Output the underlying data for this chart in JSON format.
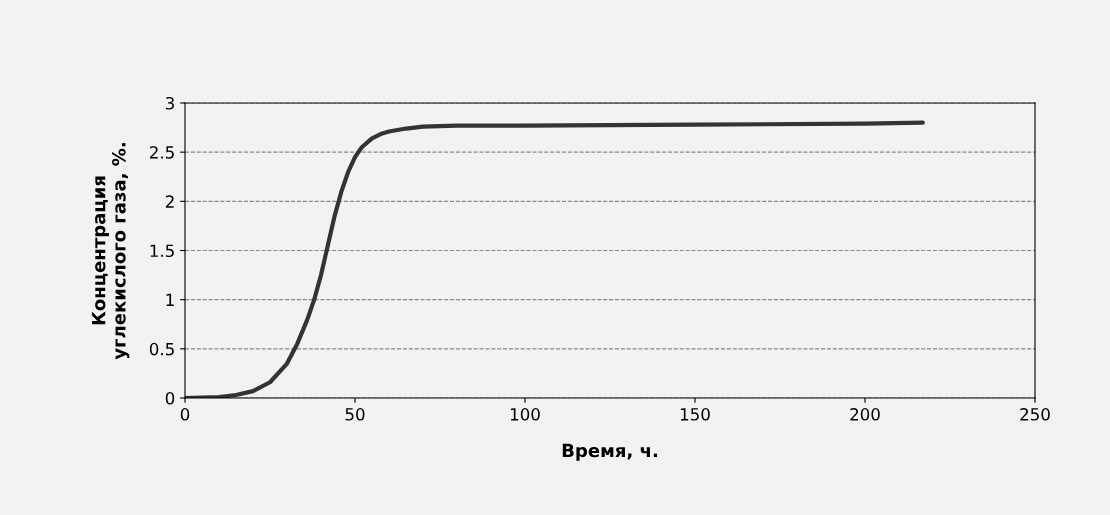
{
  "chart_data": {
    "type": "line",
    "xlabel": "Время, ч.",
    "ylabel": "Концентрация\nуглекислого газа, %.",
    "series": [
      {
        "color": "#333333",
        "x": [
          0,
          5,
          10,
          15,
          20,
          25,
          30,
          33,
          36,
          38,
          40,
          42,
          44,
          46,
          48,
          50,
          52,
          55,
          58,
          60,
          65,
          70,
          80,
          100,
          150,
          200,
          217
        ],
        "values": [
          0,
          0.005,
          0.01,
          0.03,
          0.07,
          0.16,
          0.35,
          0.55,
          0.8,
          1.0,
          1.25,
          1.55,
          1.85,
          2.1,
          2.3,
          2.45,
          2.55,
          2.64,
          2.69,
          2.71,
          2.74,
          2.76,
          2.77,
          2.77,
          2.78,
          2.79,
          2.8
        ]
      }
    ],
    "xlim": [
      0,
      250
    ],
    "xticks": [
      0,
      50,
      100,
      150,
      200,
      250
    ],
    "ylim": [
      0,
      3
    ],
    "yticks": [
      0,
      0.5,
      1,
      1.5,
      2,
      2.5,
      3
    ],
    "grid": "y",
    "marker": "none",
    "line_style": "solid",
    "legend": false
  }
}
